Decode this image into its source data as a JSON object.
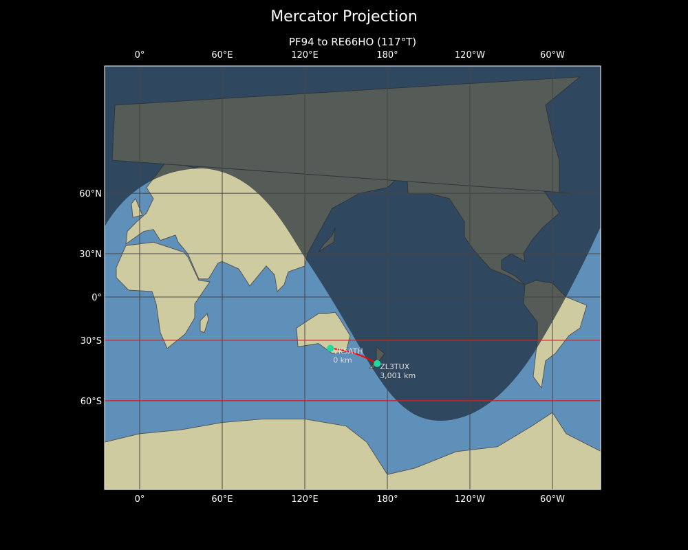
{
  "title": "Mercator Projection",
  "subtitle": "PF94 to RE66HO (117°T)",
  "map": {
    "projection": "mercator",
    "lon_ticks": [
      "0°",
      "60°E",
      "120°E",
      "180°",
      "120°W",
      "60°W"
    ],
    "lat_ticks": [
      "60°N",
      "30°N",
      "0°",
      "30°S",
      "60°S"
    ],
    "highlighted_latitudes": [
      -30,
      -60
    ],
    "colors": {
      "ocean": "#5f90ba",
      "land": "#cfcba0",
      "night": "#1a2633",
      "path": "#ff0000",
      "station": "#1ed9a0",
      "highlight_line": "#d42020",
      "grid": "#444444"
    },
    "stations": [
      {
        "call": "VK5ATH",
        "distance": "0 km",
        "lat": -34.9,
        "lon": 138.6
      },
      {
        "call": "ZL3TUX",
        "distance": "3,001 km",
        "lat": -43.5,
        "lon": 172.6
      }
    ]
  }
}
